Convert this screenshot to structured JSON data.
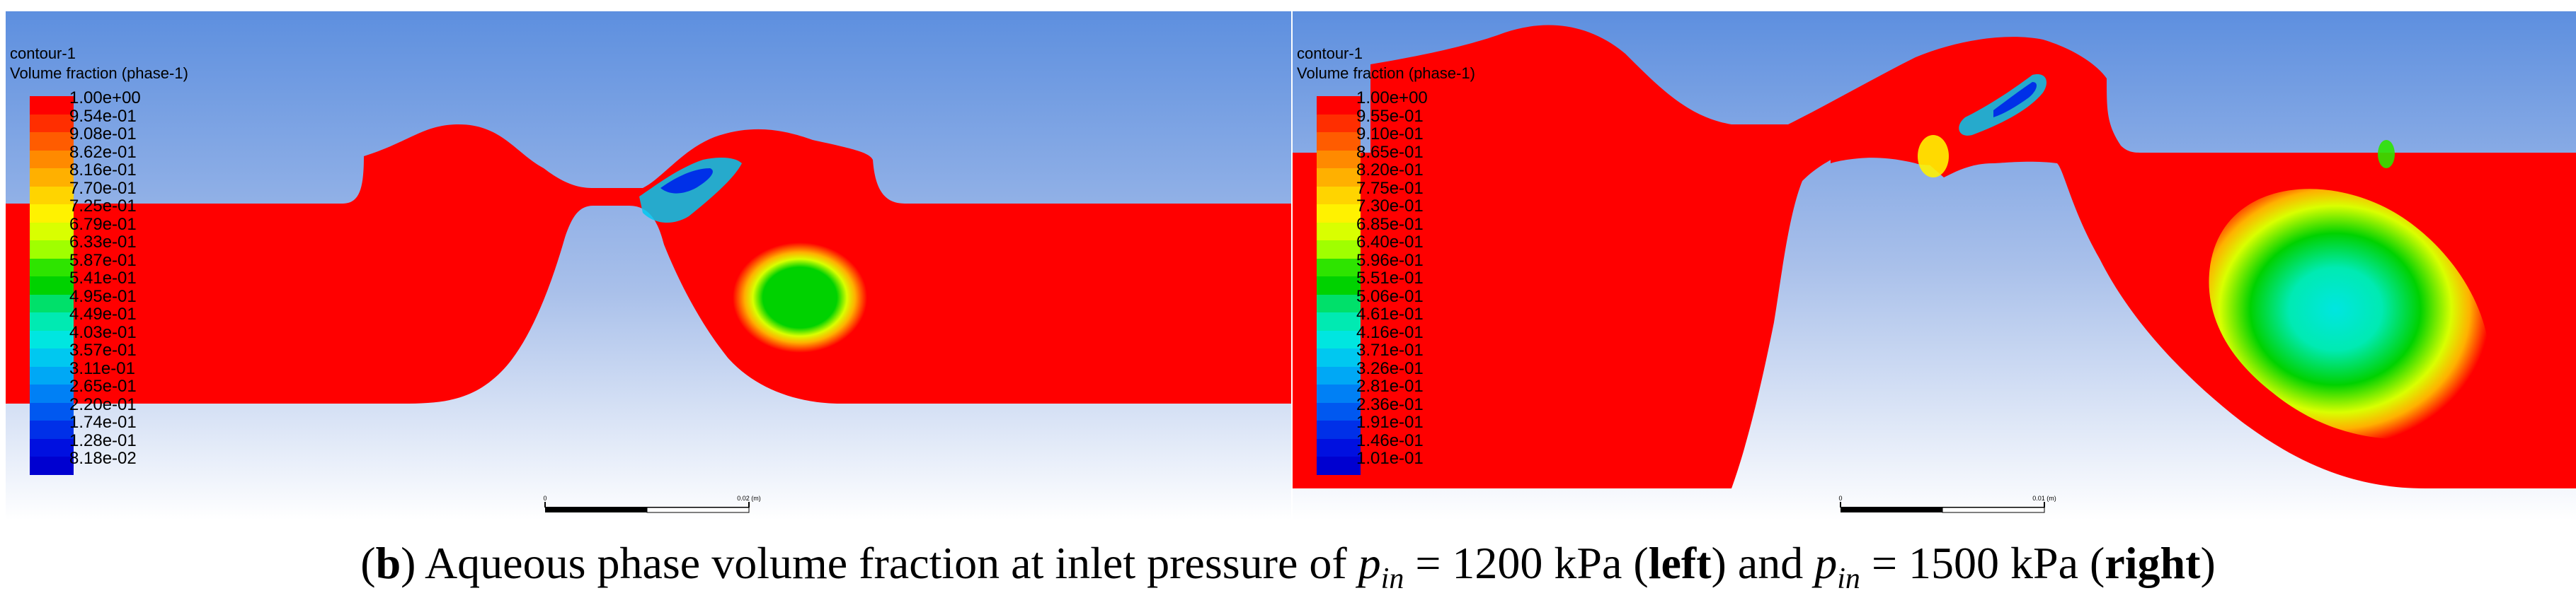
{
  "left": {
    "title": "contour-1",
    "subtitle": "Volume fraction (phase-1)",
    "scale_label": "0.02 (m)",
    "levels": [
      "1.00e+00",
      "9.54e-01",
      "9.08e-01",
      "8.62e-01",
      "8.16e-01",
      "7.70e-01",
      "7.25e-01",
      "6.79e-01",
      "6.33e-01",
      "5.87e-01",
      "5.41e-01",
      "4.95e-01",
      "4.49e-01",
      "4.03e-01",
      "3.57e-01",
      "3.11e-01",
      "2.65e-01",
      "2.20e-01",
      "1.74e-01",
      "1.28e-01",
      "8.18e-02"
    ]
  },
  "right": {
    "title": "contour-1",
    "subtitle": "Volume fraction (phase-1)",
    "scale_label": "0.01 (m)",
    "levels": [
      "1.00e+00",
      "9.55e-01",
      "9.10e-01",
      "8.65e-01",
      "8.20e-01",
      "7.75e-01",
      "7.30e-01",
      "6.85e-01",
      "6.40e-01",
      "5.96e-01",
      "5.51e-01",
      "5.06e-01",
      "4.61e-01",
      "4.16e-01",
      "3.71e-01",
      "3.26e-01",
      "2.81e-01",
      "2.36e-01",
      "1.91e-01",
      "1.46e-01",
      "1.01e-01"
    ]
  },
  "colormap": [
    "#ff0000",
    "#ff2e00",
    "#ff5c00",
    "#ff8a00",
    "#ffb000",
    "#ffd400",
    "#fff200",
    "#d9ff00",
    "#a0ff00",
    "#2ee400",
    "#00d200",
    "#00e06a",
    "#00eab2",
    "#00e6e0",
    "#00c8f0",
    "#00a8f5",
    "#0080f5",
    "#0058f0",
    "#0030e8",
    "#0010e0",
    "#0000d0"
  ],
  "caption": {
    "panel_letter": "b",
    "text_1": ") Aqueous phase volume fraction at inlet pressure of ",
    "p": "p",
    "sub": "in",
    "text_2": " = 1200 kPa (",
    "left_word": "left",
    "text_3": ") and ",
    "text_4": " = 1500 kPa (",
    "right_word": "right",
    "text_5": ")"
  }
}
